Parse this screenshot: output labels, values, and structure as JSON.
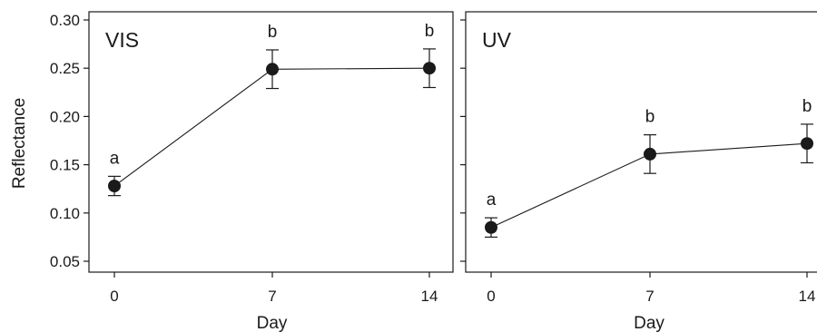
{
  "chart_data": [
    {
      "type": "line",
      "title": "VIS",
      "xlabel": "Day",
      "ylabel": "Reflectance",
      "x": [
        0,
        7,
        14
      ],
      "x_ticks": [
        "0",
        "7",
        "14"
      ],
      "ylim": [
        0.045,
        0.305
      ],
      "y_ticks": [
        "0.05",
        "0.10",
        "0.15",
        "0.20",
        "0.25",
        "0.30"
      ],
      "series": [
        {
          "values": [
            0.128,
            0.249,
            0.25
          ],
          "error": [
            0.01,
            0.02,
            0.02
          ],
          "letters": [
            "a",
            "b",
            "b"
          ]
        }
      ]
    },
    {
      "type": "line",
      "title": "UV",
      "xlabel": "Day",
      "ylabel": "",
      "x": [
        0,
        7,
        14
      ],
      "x_ticks": [
        "0",
        "7",
        "14"
      ],
      "ylim": [
        0.045,
        0.305
      ],
      "y_ticks": [],
      "series": [
        {
          "values": [
            0.085,
            0.161,
            0.172
          ],
          "error": [
            0.01,
            0.02,
            0.02
          ],
          "letters": [
            "a",
            "b",
            "b"
          ]
        }
      ]
    }
  ]
}
